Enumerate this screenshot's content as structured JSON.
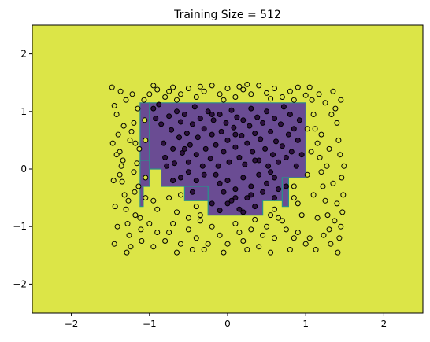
{
  "chart_data": {
    "type": "scatter",
    "title": "Training Size = 512",
    "xlabel": "",
    "ylabel": "",
    "xlim": [
      -2.5,
      2.5
    ],
    "ylim": [
      -2.5,
      2.5
    ],
    "x_ticks": [
      -2,
      -1,
      0,
      1,
      2
    ],
    "y_ticks": [
      -2,
      -1,
      0,
      1,
      2
    ],
    "x_tick_labels": [
      "−2",
      "−1",
      "0",
      "1",
      "2"
    ],
    "y_tick_labels": [
      "−2",
      "−1",
      "0",
      "1",
      "2"
    ],
    "grid": false,
    "colors": {
      "background_class": "#dce547",
      "inner_class": "#6a4c93",
      "boundary_line": "#2c8c8c",
      "inner_point": "#2d1040",
      "outer_point": "#dce547",
      "point_edge": "#000000"
    },
    "decision_regions": [
      {
        "class": "inner",
        "polygon": [
          [
            -1.0,
            1.15
          ],
          [
            1.0,
            1.15
          ],
          [
            1.0,
            -0.15
          ],
          [
            0.7,
            -0.15
          ],
          [
            0.7,
            -0.55
          ],
          [
            0.45,
            -0.55
          ],
          [
            0.45,
            -0.8
          ],
          [
            -0.25,
            -0.8
          ],
          [
            -0.25,
            -0.3
          ],
          [
            -0.85,
            -0.3
          ],
          [
            -0.85,
            0.0
          ],
          [
            -1.0,
            0.0
          ]
        ]
      },
      {
        "class": "inner",
        "polygon": [
          [
            -1.12,
            1.15
          ],
          [
            -1.0,
            1.15
          ],
          [
            -1.0,
            0.15
          ],
          [
            -1.12,
            0.15
          ]
        ]
      },
      {
        "class": "inner",
        "polygon": [
          [
            -1.12,
            0.15
          ],
          [
            -1.0,
            0.15
          ],
          [
            -1.0,
            -0.3
          ],
          [
            -1.12,
            -0.3
          ]
        ]
      },
      {
        "class": "inner",
        "polygon": [
          [
            -1.12,
            -0.3
          ],
          [
            -1.08,
            -0.3
          ],
          [
            -1.08,
            -0.65
          ],
          [
            -1.12,
            -0.65
          ]
        ]
      },
      {
        "class": "inner",
        "polygon": [
          [
            -0.55,
            -0.3
          ],
          [
            -0.25,
            -0.3
          ],
          [
            -0.25,
            -0.55
          ],
          [
            -0.55,
            -0.55
          ]
        ]
      },
      {
        "class": "inner",
        "polygon": [
          [
            0.7,
            -0.15
          ],
          [
            0.78,
            -0.15
          ],
          [
            0.78,
            -0.65
          ],
          [
            0.7,
            -0.65
          ]
        ]
      }
    ],
    "inner_points": [
      [
        -0.95,
        1.05
      ],
      [
        -0.92,
        0.88
      ],
      [
        -0.88,
        1.12
      ],
      [
        -0.85,
        0.78
      ],
      [
        -0.82,
        0.45
      ],
      [
        -0.8,
        0.2
      ],
      [
        -0.78,
        0.05
      ],
      [
        -0.75,
        0.92
      ],
      [
        -0.72,
        0.68
      ],
      [
        -0.7,
        0.35
      ],
      [
        -0.68,
        0.1
      ],
      [
        -0.65,
        1.0
      ],
      [
        -0.62,
        0.55
      ],
      [
        -0.6,
        0.82
      ],
      [
        -0.58,
        0.28
      ],
      [
        -0.55,
        0.95
      ],
      [
        -0.52,
        0.62
      ],
      [
        -0.5,
        0.12
      ],
      [
        -0.48,
        0.42
      ],
      [
        -0.45,
        0.78
      ],
      [
        -0.42,
        1.08
      ],
      [
        -0.4,
        0.25
      ],
      [
        -0.38,
        0.55
      ],
      [
        -0.35,
        0.88
      ],
      [
        -0.32,
        0.05
      ],
      [
        -0.3,
        0.7
      ],
      [
        -0.28,
        0.35
      ],
      [
        -0.25,
        1.0
      ],
      [
        -0.22,
        0.18
      ],
      [
        -0.2,
        0.6
      ],
      [
        -0.18,
        0.85
      ],
      [
        -0.15,
        0.42
      ],
      [
        -0.12,
        0.05
      ],
      [
        -0.1,
        0.95
      ],
      [
        -0.08,
        0.65
      ],
      [
        -0.05,
        0.3
      ],
      [
        -0.02,
        0.8
      ],
      [
        0.0,
        0.5
      ],
      [
        0.02,
        0.12
      ],
      [
        0.05,
        1.02
      ],
      [
        0.08,
        0.72
      ],
      [
        0.1,
        0.38
      ],
      [
        0.12,
        0.9
      ],
      [
        0.15,
        0.2
      ],
      [
        0.18,
        0.58
      ],
      [
        0.2,
        0.85
      ],
      [
        0.22,
        0.08
      ],
      [
        0.25,
        0.45
      ],
      [
        0.28,
        0.75
      ],
      [
        0.3,
        1.05
      ],
      [
        0.32,
        0.3
      ],
      [
        0.35,
        0.62
      ],
      [
        0.38,
        0.9
      ],
      [
        0.4,
        0.15
      ],
      [
        0.42,
        0.52
      ],
      [
        0.45,
        0.8
      ],
      [
        0.48,
        0.35
      ],
      [
        0.5,
        1.0
      ],
      [
        0.52,
        0.05
      ],
      [
        0.55,
        0.65
      ],
      [
        0.58,
        0.25
      ],
      [
        0.6,
        0.88
      ],
      [
        0.62,
        0.48
      ],
      [
        0.65,
        0.12
      ],
      [
        0.68,
        0.78
      ],
      [
        0.7,
        0.4
      ],
      [
        0.72,
        1.08
      ],
      [
        0.75,
        0.2
      ],
      [
        0.78,
        0.6
      ],
      [
        0.8,
        0.95
      ],
      [
        0.82,
        0.3
      ],
      [
        0.85,
        0.7
      ],
      [
        0.88,
        0.05
      ],
      [
        0.9,
        0.5
      ],
      [
        0.92,
        0.85
      ],
      [
        0.95,
        0.25
      ],
      [
        -0.15,
        -0.1
      ],
      [
        -0.1,
        -0.25
      ],
      [
        -0.05,
        -0.4
      ],
      [
        0.0,
        -0.2
      ],
      [
        0.05,
        -0.55
      ],
      [
        0.1,
        -0.35
      ],
      [
        0.15,
        -0.7
      ],
      [
        0.2,
        -0.15
      ],
      [
        0.25,
        -0.5
      ],
      [
        0.3,
        -0.3
      ],
      [
        0.35,
        -0.65
      ],
      [
        0.4,
        -0.1
      ],
      [
        0.45,
        -0.4
      ],
      [
        0.5,
        -0.25
      ],
      [
        0.55,
        -0.05
      ],
      [
        0.6,
        -0.15
      ],
      [
        0.65,
        -0.35
      ],
      [
        -0.2,
        -0.6
      ],
      [
        -0.1,
        -0.72
      ],
      [
        0.0,
        -0.6
      ],
      [
        0.1,
        -0.5
      ],
      [
        0.2,
        -0.75
      ],
      [
        0.3,
        -0.45
      ],
      [
        -0.6,
        -0.15
      ],
      [
        -0.5,
        -0.05
      ],
      [
        -0.4,
        -0.2
      ],
      [
        -0.3,
        -0.1
      ],
      [
        -0.7,
        -0.2
      ],
      [
        -0.45,
        -0.4
      ],
      [
        0.75,
        -0.3
      ],
      [
        0.6,
        -0.5
      ],
      [
        -0.2,
        0.95
      ],
      [
        0.1,
        0.6
      ],
      [
        -0.55,
        0.35
      ],
      [
        0.35,
        0.15
      ]
    ],
    "outer_points": [
      [
        -1.48,
        1.42
      ],
      [
        -1.45,
        1.1
      ],
      [
        -1.42,
        0.95
      ],
      [
        -1.4,
        0.6
      ],
      [
        -1.38,
        0.3
      ],
      [
        -1.36,
        0.05
      ],
      [
        -1.35,
        -0.22
      ],
      [
        -1.32,
        -0.45
      ],
      [
        -1.3,
        -0.7
      ],
      [
        -1.28,
        -0.95
      ],
      [
        -1.26,
        -1.15
      ],
      [
        -1.24,
        -1.35
      ],
      [
        -1.22,
        1.3
      ],
      [
        -1.2,
        0.8
      ],
      [
        -1.18,
        0.45
      ],
      [
        -1.16,
        0.1
      ],
      [
        -1.14,
        -0.3
      ],
      [
        -1.12,
        -0.85
      ],
      [
        -1.1,
        -1.25
      ],
      [
        -1.45,
        -1.3
      ],
      [
        -1.42,
        0.25
      ],
      [
        -1.38,
        -0.1
      ],
      [
        -1.33,
        0.75
      ],
      [
        -1.3,
        1.2
      ],
      [
        -1.27,
        -0.55
      ],
      [
        -1.25,
        0.5
      ],
      [
        -1.2,
        -0.05
      ],
      [
        -1.18,
        -0.8
      ],
      [
        -1.15,
        1.05
      ],
      [
        -1.47,
        0.45
      ],
      [
        -1.44,
        -0.65
      ],
      [
        -1.41,
        -1.0
      ],
      [
        -1.37,
        1.35
      ],
      [
        -1.34,
        0.15
      ],
      [
        -1.29,
        -1.45
      ],
      [
        -1.23,
        0.65
      ],
      [
        -1.19,
        -0.4
      ],
      [
        -1.13,
        0.35
      ],
      [
        -1.11,
        -1.05
      ],
      [
        -1.46,
        -0.2
      ],
      [
        1.05,
        1.42
      ],
      [
        1.08,
        1.2
      ],
      [
        1.1,
        0.95
      ],
      [
        1.12,
        0.7
      ],
      [
        1.15,
        0.45
      ],
      [
        1.18,
        0.2
      ],
      [
        1.2,
        -0.05
      ],
      [
        1.22,
        -0.3
      ],
      [
        1.25,
        -0.55
      ],
      [
        1.28,
        -0.8
      ],
      [
        1.3,
        -1.05
      ],
      [
        1.32,
        -1.3
      ],
      [
        1.35,
        1.35
      ],
      [
        1.38,
        1.05
      ],
      [
        1.4,
        0.8
      ],
      [
        1.42,
        0.5
      ],
      [
        1.44,
        0.25
      ],
      [
        1.46,
        -0.15
      ],
      [
        1.48,
        -0.45
      ],
      [
        1.47,
        -0.75
      ],
      [
        1.45,
        -1.0
      ],
      [
        1.43,
        -1.2
      ],
      [
        1.41,
        -1.45
      ],
      [
        1.05,
        -1.2
      ],
      [
        1.1,
        -0.45
      ],
      [
        1.15,
        -0.85
      ],
      [
        1.2,
        0.6
      ],
      [
        1.25,
        1.15
      ],
      [
        1.3,
        0.35
      ],
      [
        1.35,
        -0.25
      ],
      [
        1.4,
        -0.6
      ],
      [
        1.45,
        1.2
      ],
      [
        1.07,
        0.3
      ],
      [
        1.13,
        -1.4
      ],
      [
        1.23,
        -1.15
      ],
      [
        1.33,
        0.95
      ],
      [
        1.37,
        -0.9
      ],
      [
        1.27,
        0.05
      ],
      [
        1.17,
        1.3
      ],
      [
        1.49,
        0.05
      ],
      [
        -1.0,
        1.3
      ],
      [
        -0.9,
        1.38
      ],
      [
        -0.8,
        1.25
      ],
      [
        -0.7,
        1.42
      ],
      [
        -0.6,
        1.3
      ],
      [
        -0.5,
        1.4
      ],
      [
        -0.4,
        1.25
      ],
      [
        -0.3,
        1.35
      ],
      [
        -0.2,
        1.45
      ],
      [
        -0.1,
        1.3
      ],
      [
        0.0,
        1.4
      ],
      [
        0.1,
        1.25
      ],
      [
        0.2,
        1.38
      ],
      [
        0.3,
        1.3
      ],
      [
        0.4,
        1.45
      ],
      [
        0.5,
        1.32
      ],
      [
        0.6,
        1.4
      ],
      [
        0.7,
        1.25
      ],
      [
        0.8,
        1.35
      ],
      [
        0.9,
        1.42
      ],
      [
        1.0,
        1.28
      ],
      [
        -0.95,
        1.45
      ],
      [
        -0.65,
        1.2
      ],
      [
        -0.35,
        1.43
      ],
      [
        -0.05,
        1.2
      ],
      [
        0.25,
        1.47
      ],
      [
        0.55,
        1.22
      ],
      [
        0.85,
        1.2
      ],
      [
        -0.75,
        1.35
      ],
      [
        0.15,
        1.43
      ],
      [
        -1.0,
        -0.95
      ],
      [
        -0.9,
        -1.1
      ],
      [
        -0.8,
        -1.25
      ],
      [
        -0.7,
        -0.95
      ],
      [
        -0.6,
        -1.3
      ],
      [
        -0.5,
        -1.05
      ],
      [
        -0.4,
        -1.2
      ],
      [
        -0.3,
        -1.4
      ],
      [
        -0.2,
        -1.0
      ],
      [
        -0.1,
        -1.15
      ],
      [
        0.0,
        -1.3
      ],
      [
        0.1,
        -0.95
      ],
      [
        0.2,
        -1.25
      ],
      [
        0.3,
        -1.05
      ],
      [
        0.4,
        -1.35
      ],
      [
        0.5,
        -1.0
      ],
      [
        0.6,
        -1.2
      ],
      [
        0.7,
        -0.9
      ],
      [
        0.8,
        -1.4
      ],
      [
        0.9,
        -1.1
      ],
      [
        1.0,
        -1.3
      ],
      [
        -0.95,
        -1.35
      ],
      [
        -0.65,
        -1.45
      ],
      [
        -0.35,
        -0.9
      ],
      [
        -0.05,
        -1.45
      ],
      [
        0.25,
        -1.4
      ],
      [
        0.55,
        -1.45
      ],
      [
        0.85,
        -1.2
      ],
      [
        -0.75,
        -1.1
      ],
      [
        0.15,
        -1.1
      ],
      [
        -0.45,
        -1.4
      ],
      [
        0.45,
        -1.15
      ],
      [
        0.75,
        -1.05
      ],
      [
        -0.25,
        -1.3
      ],
      [
        0.35,
        -0.88
      ],
      [
        -1.05,
        -0.5
      ],
      [
        -1.05,
        0.5
      ],
      [
        -0.95,
        -0.55
      ],
      [
        -0.9,
        -0.7
      ],
      [
        -0.75,
        -0.5
      ],
      [
        -0.65,
        -0.75
      ],
      [
        -0.6,
        -0.45
      ],
      [
        -0.4,
        -0.65
      ],
      [
        -0.35,
        -0.8
      ],
      [
        -0.5,
        -0.85
      ],
      [
        0.55,
        -0.8
      ],
      [
        0.6,
        -0.7
      ],
      [
        0.65,
        -0.85
      ],
      [
        0.85,
        -0.3
      ],
      [
        0.9,
        -0.6
      ],
      [
        0.95,
        -0.8
      ],
      [
        0.85,
        -0.5
      ],
      [
        1.02,
        0.7
      ],
      [
        1.02,
        -0.1
      ],
      [
        -1.05,
        -0.15
      ],
      [
        -1.06,
        0.85
      ],
      [
        -1.07,
        1.2
      ]
    ]
  }
}
